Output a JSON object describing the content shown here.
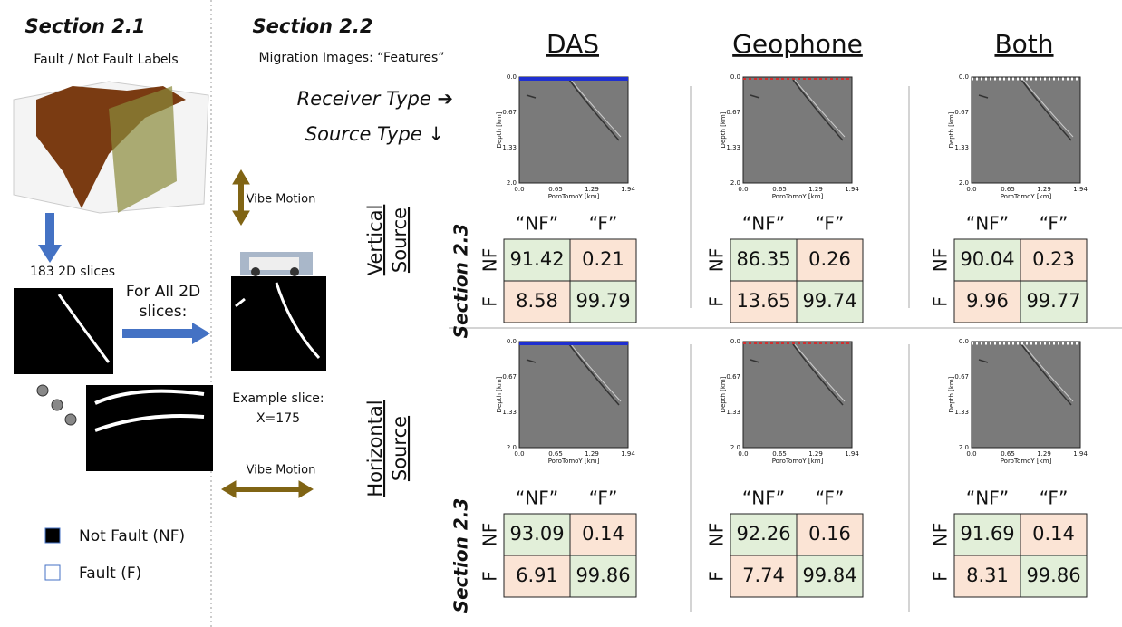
{
  "section_21": {
    "title": "Section 2.1",
    "subtitle": "Fault / Not Fault Labels",
    "slices_label": "183 2D slices",
    "arrow_label_line1": "For All 2D",
    "arrow_label_line2": "slices:",
    "legend": [
      "Not Fault (NF)",
      "Fault (F)"
    ]
  },
  "section_22": {
    "title": "Section 2.2",
    "subtitle": "Migration Images: “Features”",
    "receiver_label": "Receiver Type ➔",
    "source_label": "Source Type ↓",
    "vibe_vertical": "Vibe Motion",
    "vibe_horizontal": "Vibe Motion",
    "example_line1": "Example slice:",
    "example_line2": "X=175"
  },
  "columns": [
    "DAS",
    "Geophone",
    "Both"
  ],
  "plot_axes": {
    "yticks": [
      "0.0",
      "0.67",
      "1.33",
      "2.0"
    ],
    "xticks": [
      "0.0",
      "0.65",
      "1.29",
      "1.94"
    ],
    "ylabel": "Depth [km]",
    "xlabel": "PoroTomoY [km]"
  },
  "matrix_headers": [
    "“NF”",
    "“F”"
  ],
  "matrix_row_labels": [
    "NF",
    "F"
  ],
  "rows": [
    {
      "label_line1": "Vertical",
      "label_line2": "Source",
      "section": "Section 2.3",
      "matrices": [
        [
          [
            91.42,
            0.21
          ],
          [
            8.58,
            99.79
          ]
        ],
        [
          [
            86.35,
            0.26
          ],
          [
            13.65,
            99.74
          ]
        ],
        [
          [
            90.04,
            0.23
          ],
          [
            9.96,
            99.77
          ]
        ]
      ]
    },
    {
      "label_line1": "Horizontal",
      "label_line2": "Source",
      "section": "Section 2.3",
      "matrices": [
        [
          [
            93.09,
            0.14
          ],
          [
            6.91,
            99.86
          ]
        ],
        [
          [
            92.26,
            0.16
          ],
          [
            7.74,
            99.84
          ]
        ],
        [
          [
            91.69,
            0.14
          ],
          [
            8.31,
            99.86
          ]
        ]
      ]
    }
  ]
}
